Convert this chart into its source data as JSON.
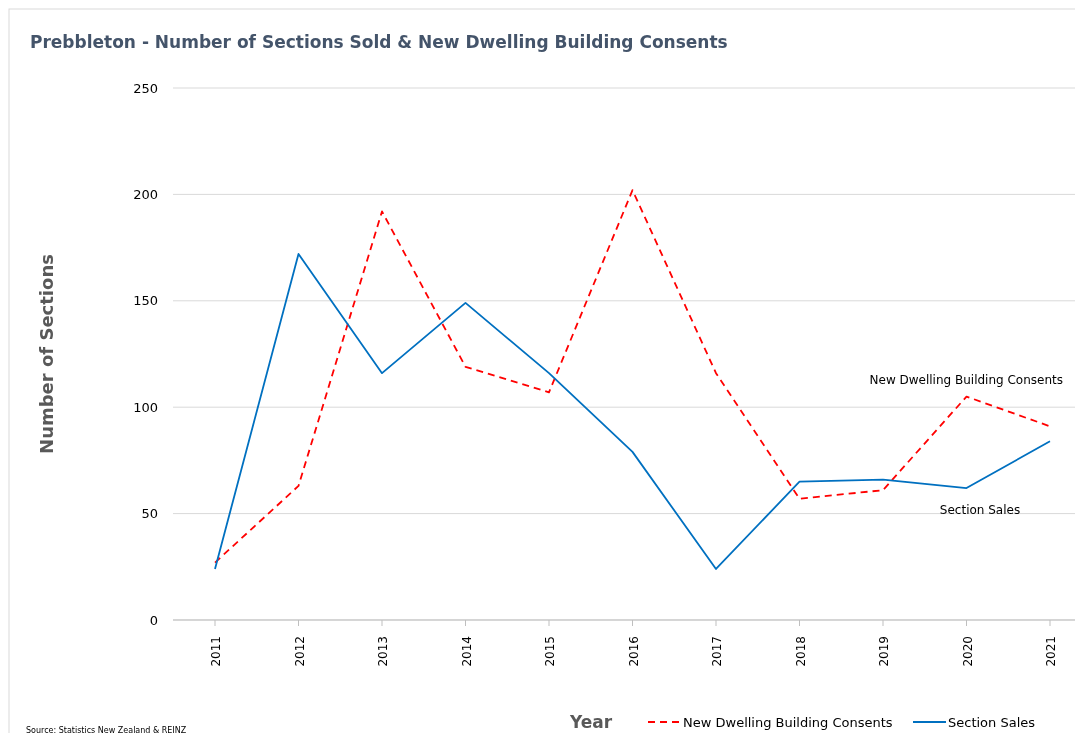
{
  "chart_data": {
    "type": "line",
    "title": "Prebbleton - Number of Sections Sold & New Dwelling Building Consents",
    "xlabel": "Year",
    "ylabel": "Number of Sections",
    "categories": [
      "2011",
      "2012",
      "2013",
      "2014",
      "2015",
      "2016",
      "2017",
      "2018",
      "2019",
      "2020",
      "2021"
    ],
    "series": [
      {
        "name": "New Dwelling Building Consents",
        "color": "#ff0000",
        "line_style": "dashed",
        "values": [
          27,
          63,
          192,
          119,
          107,
          202,
          116,
          57,
          61,
          105,
          91
        ]
      },
      {
        "name": "Section Sales",
        "color": "#0070c0",
        "line_style": "solid",
        "values": [
          24,
          172,
          116,
          149,
          116,
          79,
          24,
          65,
          66,
          62,
          84
        ]
      }
    ],
    "ylim": [
      0,
      250
    ],
    "yticks": [
      0,
      50,
      100,
      150,
      200,
      250
    ],
    "grid": "y",
    "legend": "bottom",
    "marker": "none",
    "annotations": [
      "New Dwelling Building Consents",
      "Section Sales",
      "Source: Statistics New Zealand & REINZ"
    ]
  }
}
